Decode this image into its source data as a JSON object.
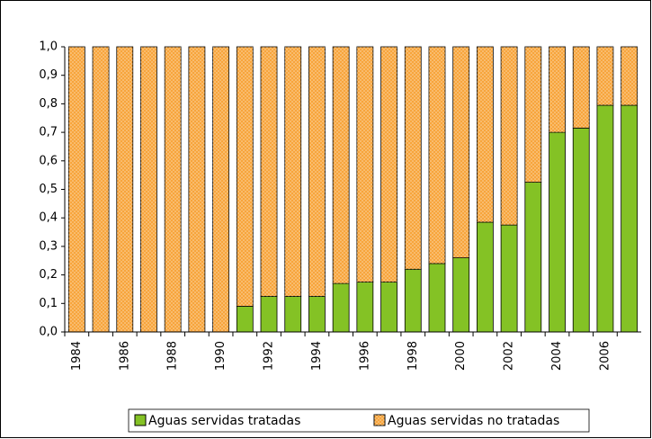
{
  "chart_data": {
    "type": "stacked_bar",
    "categories": [
      "1984",
      null,
      "1986",
      null,
      "1988",
      null,
      "1990",
      null,
      "1992",
      null,
      "1994",
      null,
      "1996",
      null,
      "1998",
      null,
      "2000",
      null,
      "2002",
      null,
      "2004",
      null,
      "2006",
      null
    ],
    "series": [
      {
        "name": "Aguas servidas tratadas",
        "color": "#84c225",
        "values": [
          0,
          0,
          0,
          0,
          0,
          0,
          0,
          0.09,
          0.125,
          0.125,
          0.125,
          0.17,
          0.175,
          0.175,
          0.22,
          0.24,
          0.26,
          0.385,
          0.375,
          0.525,
          0.7,
          0.715,
          0.795,
          0.795
        ]
      },
      {
        "name": "Aguas servidas no tratadas",
        "color": "#f7a53c",
        "values": [
          1,
          1,
          1,
          1,
          1,
          1,
          1,
          0.91,
          0.875,
          0.875,
          0.875,
          0.83,
          0.825,
          0.825,
          0.78,
          0.76,
          0.74,
          0.615,
          0.625,
          0.475,
          0.3,
          0.285,
          0.205,
          0.205
        ]
      }
    ],
    "ylim": [
      0,
      1
    ],
    "yticks": [
      {
        "value": 0,
        "label": "0,0"
      },
      {
        "value": 0.1,
        "label": "0,1"
      },
      {
        "value": 0.2,
        "label": "0,2"
      },
      {
        "value": 0.3,
        "label": "0,3"
      },
      {
        "value": 0.4,
        "label": "0,4"
      },
      {
        "value": 0.5,
        "label": "0,5"
      },
      {
        "value": 0.6,
        "label": "0,6"
      },
      {
        "value": 0.7,
        "label": "0,7"
      },
      {
        "value": 0.8,
        "label": "0,8"
      },
      {
        "value": 0.9,
        "label": "0,9"
      },
      {
        "value": 1,
        "label": "1,0"
      }
    ]
  }
}
